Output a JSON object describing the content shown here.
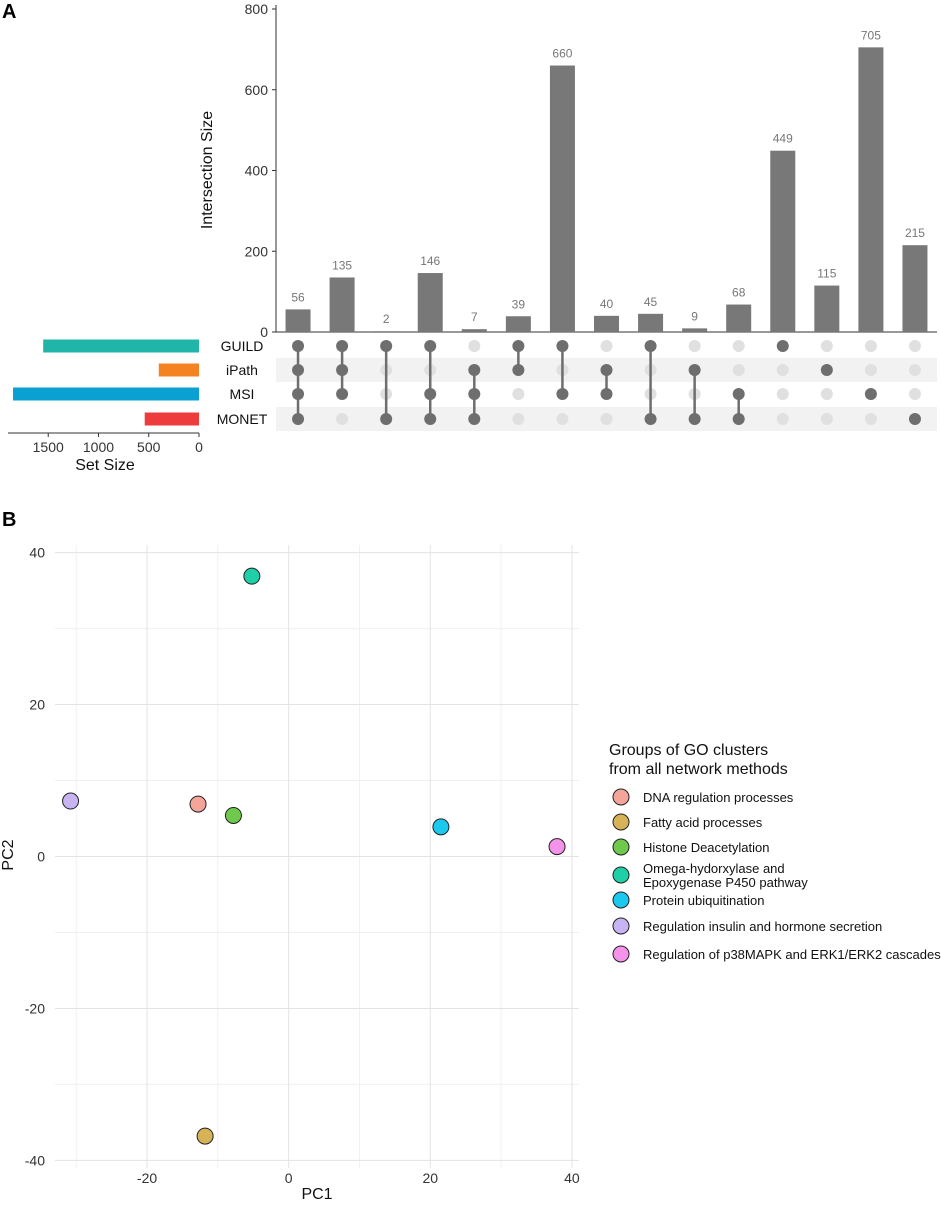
{
  "panel_a_letter": "A",
  "panel_b_letter": "B",
  "chart_data": [
    {
      "type": "bar",
      "subtype": "upset",
      "ylabel": "Intersection Size",
      "ylim": [
        0,
        800
      ],
      "yticks": [
        "0",
        "200",
        "400",
        "600",
        "800"
      ],
      "intersections": [
        {
          "value": 56,
          "members": [
            "GUILD",
            "iPath",
            "MSI",
            "MONET"
          ]
        },
        {
          "value": 135,
          "members": [
            "GUILD",
            "iPath",
            "MSI"
          ]
        },
        {
          "value": 2,
          "members": [
            "GUILD",
            "MONET"
          ]
        },
        {
          "value": 146,
          "members": [
            "GUILD",
            "MSI",
            "MONET"
          ]
        },
        {
          "value": 7,
          "members": [
            "iPath",
            "MSI",
            "MONET"
          ]
        },
        {
          "value": 39,
          "members": [
            "GUILD",
            "iPath"
          ]
        },
        {
          "value": 660,
          "members": [
            "GUILD",
            "MSI"
          ]
        },
        {
          "value": 40,
          "members": [
            "iPath",
            "MSI"
          ]
        },
        {
          "value": 45,
          "members": [
            "GUILD",
            "MONET"
          ]
        },
        {
          "value": 9,
          "members": [
            "iPath",
            "MONET"
          ]
        },
        {
          "value": 68,
          "members": [
            "MSI",
            "MONET"
          ]
        },
        {
          "value": 449,
          "members": [
            "GUILD"
          ]
        },
        {
          "value": 115,
          "members": [
            "iPath"
          ]
        },
        {
          "value": 705,
          "members": [
            "MSI"
          ]
        },
        {
          "value": 215,
          "members": [
            "MONET"
          ]
        }
      ],
      "bar_labels": [
        "56",
        "135",
        "2",
        "146",
        "7",
        "39",
        "660",
        "40",
        "45",
        "9",
        "68",
        "449",
        "115",
        "705",
        "215"
      ],
      "sets": [
        {
          "name": "GUILD",
          "size": 1550,
          "color": "#1fb5a8"
        },
        {
          "name": "iPath",
          "size": 400,
          "color": "#f58220"
        },
        {
          "name": "MSI",
          "size": 1850,
          "color": "#0aa0d2"
        },
        {
          "name": "MONET",
          "size": 540,
          "color": "#ee3b3b"
        }
      ],
      "set_size_label": "Set Size",
      "set_size_ticks": [
        "1500",
        "1000",
        "500",
        "0"
      ],
      "set_size_tick_values": [
        1500,
        1000,
        500,
        0
      ],
      "set_size_max": 1900,
      "bar_color": "#787878"
    },
    {
      "type": "scatter",
      "xlabel": "PC1",
      "ylabel": "PC2",
      "xlim": [
        -33,
        41
      ],
      "ylim": [
        -41,
        41
      ],
      "xticks": [
        -20,
        0,
        20,
        40
      ],
      "xtick_labels": [
        "-20",
        "0",
        "20",
        "40"
      ],
      "yticks": [
        40,
        20,
        0,
        -20,
        -40
      ],
      "ytick_labels": [
        "40",
        "20",
        "0",
        "-20",
        "-40"
      ],
      "legend_title_lines": [
        "Groups of GO clusters",
        "from all network methods"
      ],
      "series": [
        {
          "name_lines": [
            "DNA regulation processes"
          ],
          "color": "#f4a59a",
          "x": -12.8,
          "y": 6.9
        },
        {
          "name_lines": [
            "Fatty acid processes"
          ],
          "color": "#d6b357",
          "x": -11.8,
          "y": -36.8
        },
        {
          "name_lines": [
            "Histone Deacetylation"
          ],
          "color": "#6ec94d",
          "x": -7.8,
          "y": 5.4
        },
        {
          "name_lines": [
            "Omega-hydorxylase and",
            "Epoxygenase P450 pathway"
          ],
          "color": "#1ecfa8",
          "x": -5.2,
          "y": 36.9
        },
        {
          "name_lines": [
            "Protein ubiquitination"
          ],
          "color": "#1bc8ee",
          "x": 21.5,
          "y": 3.9
        },
        {
          "name_lines": [
            "Regulation insulin and hormone secretion"
          ],
          "color": "#c8b3f3",
          "x": -30.8,
          "y": 7.3
        },
        {
          "name_lines": [
            "Regulation of p38MAPK and ERK1/ERK2 cascades"
          ],
          "color": "#f493e9",
          "x": 37.9,
          "y": 1.3
        }
      ]
    }
  ]
}
